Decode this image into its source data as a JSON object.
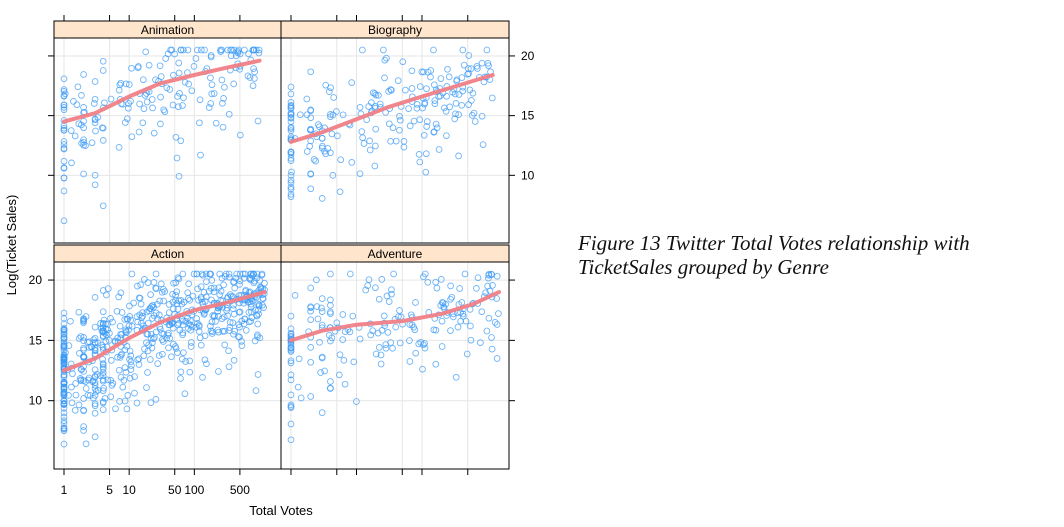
{
  "figure_caption": "Figure 13 Twitter Total Votes relationship with TicketSales grouped by Genre",
  "colors": {
    "point": "#3e9bf5",
    "smooth": "#f07f86",
    "strip": "#ffe5cc",
    "grid": "#e6e6e6"
  },
  "chart_data": {
    "type": "scatter",
    "xlabel": "Total Votes",
    "ylabel": "Log(Ticket Sales)",
    "x_scale": "log10",
    "xlim": [
      1,
      1500
    ],
    "ylim": [
      5,
      21
    ],
    "x_ticks": [
      1,
      5,
      10,
      50,
      100,
      500
    ],
    "x_tick_labels": [
      "1",
      "5",
      "10",
      "50",
      "100",
      "500"
    ],
    "y_ticks": [
      10,
      15,
      20
    ],
    "y_tick_labels": [
      "10",
      "15",
      "20"
    ],
    "grid": true,
    "panels": [
      {
        "name": "Animation",
        "n_points": 200,
        "smooth": [
          [
            1,
            14.5
          ],
          [
            3,
            15.2
          ],
          [
            10,
            16.6
          ],
          [
            30,
            17.7
          ],
          [
            100,
            18.4
          ],
          [
            300,
            19.0
          ],
          [
            1000,
            19.6
          ]
        ]
      },
      {
        "name": "Biography",
        "n_points": 230,
        "smooth": [
          [
            1,
            12.8
          ],
          [
            3,
            13.6
          ],
          [
            10,
            14.7
          ],
          [
            30,
            15.7
          ],
          [
            100,
            16.6
          ],
          [
            300,
            17.4
          ],
          [
            1200,
            18.4
          ]
        ]
      },
      {
        "name": "Action",
        "n_points": 650,
        "smooth": [
          [
            1,
            12.5
          ],
          [
            3,
            13.5
          ],
          [
            10,
            15.2
          ],
          [
            30,
            16.5
          ],
          [
            100,
            17.5
          ],
          [
            300,
            18.1
          ],
          [
            1200,
            19.0
          ]
        ]
      },
      {
        "name": "Adventure",
        "n_points": 210,
        "smooth": [
          [
            1,
            15.0
          ],
          [
            3,
            15.8
          ],
          [
            10,
            16.3
          ],
          [
            50,
            16.6
          ],
          [
            200,
            17.2
          ],
          [
            600,
            18.0
          ],
          [
            1500,
            19.0
          ]
        ]
      }
    ]
  }
}
